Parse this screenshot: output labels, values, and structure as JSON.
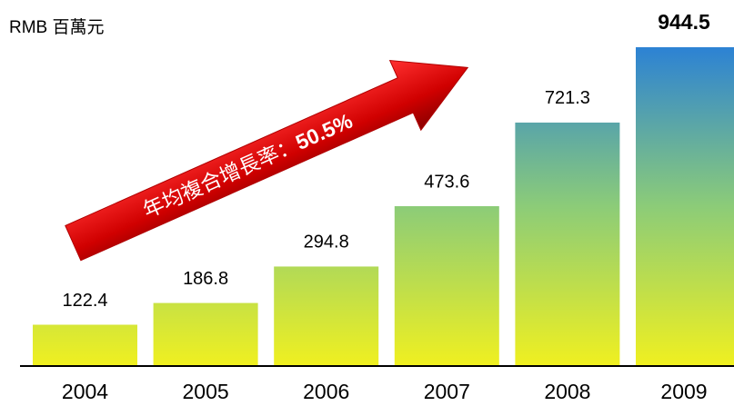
{
  "chart_data": {
    "type": "bar",
    "unit_label": "RMB 百萬元",
    "annotation": {
      "text": "年均複合增長率：",
      "highlight": "50.5%"
    },
    "categories": [
      "2004",
      "2005",
      "2006",
      "2007",
      "2008",
      "2009"
    ],
    "values": [
      122.4,
      186.8,
      294.8,
      473.6,
      721.3,
      944.5
    ],
    "gradient": [
      "#f0f020",
      "#8ccc78",
      "#2c82d4"
    ]
  }
}
